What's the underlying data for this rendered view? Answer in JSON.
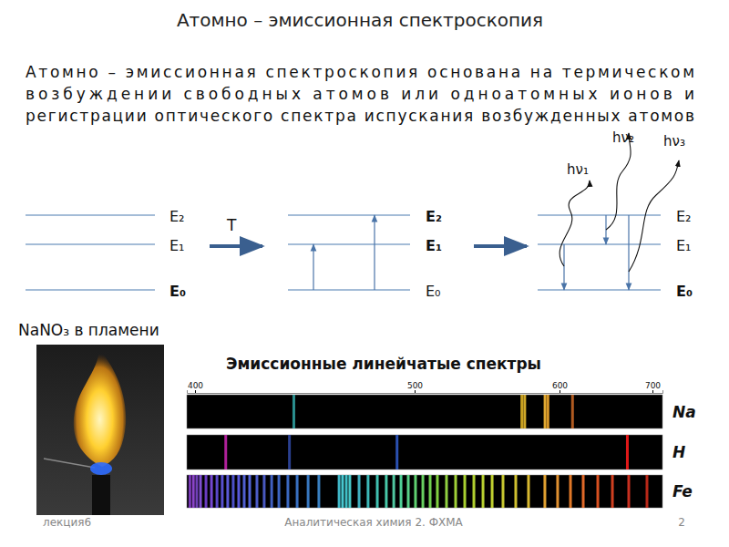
{
  "title": "Атомно – эмиссионная спектроскопия",
  "paragraph_lines": [
    "Атомно – эмиссионная спектроскопия основана на термическом",
    "возбуждении свободных атомов или одноатомных ионов и",
    "регистрации оптического спектра испускания возбужденных атомов"
  ],
  "energy_diagram": {
    "panels": [
      {
        "levels": [
          {
            "label": "E₂",
            "bold": false
          },
          {
            "label": "E₁",
            "bold": false
          },
          {
            "label": "E₀",
            "bold": true
          }
        ]
      },
      {
        "levels": [
          {
            "label": "E₂",
            "bold": true
          },
          {
            "label": "E₁",
            "bold": true
          },
          {
            "label": "E₀",
            "bold": false
          }
        ]
      },
      {
        "levels": [
          {
            "label": "E₂",
            "bold": false
          },
          {
            "label": "E₁",
            "bold": false
          },
          {
            "label": "E₀",
            "bold": true
          }
        ]
      }
    ],
    "heating_label": "T",
    "photons": [
      "hν₁",
      "hν₂",
      "hν₃"
    ]
  },
  "photo_caption": "NaNO₃ в пламени",
  "chart_data": {
    "type": "spectrum",
    "title": "Эмиссионные линейчатые спектры",
    "xlim": [
      396,
      711
    ],
    "xticks": [
      400,
      500,
      600,
      700
    ],
    "series": [
      {
        "name": "Na",
        "values": [
          445,
          574,
          576,
          590,
          592,
          614
        ],
        "colors": [
          "#2a8f8f",
          "#c8a020",
          "#d0a828",
          "#e0a830",
          "#d89828",
          "#b05a20"
        ]
      },
      {
        "name": "H",
        "values": [
          414,
          443,
          492,
          673
        ],
        "colors": [
          "#b0209a",
          "#2a3f8f",
          "#2a50b0",
          "#e01818"
        ]
      },
      {
        "name": "Fe",
        "values": [
          397.5,
          399.2,
          400.8,
          402.5,
          405.0,
          407.5,
          410.0,
          412.4,
          414.9,
          417.4,
          419.9,
          422.4,
          424.9,
          428.2,
          431.5,
          434.9,
          438.2,
          442.3,
          446.5,
          451.5,
          456.4,
          465.6,
          467.2,
          468.9,
          470.5,
          474.7,
          478.8,
          483.0,
          487.1,
          490.5,
          493.8,
          497.1,
          500.6,
          505.7,
          510.7,
          515.7,
          522.0,
          528.3,
          534.6,
          540.9,
          547.2,
          553.5,
          561.0,
          569.8,
          578.6,
          589.9,
          598.7,
          611.8,
          625.5,
          641.2,
          656.9,
          674.5,
          694.1
        ],
        "colors": [
          "#7a3ab8",
          "#8a44c8",
          "#7040b8",
          "#8050d0",
          "#6a3cc0",
          "#7448d0",
          "#5a48c8",
          "#5850d0",
          "#5a5ad8",
          "#4c50c8",
          "#5858d8",
          "#5060d0",
          "#5464d8",
          "#4c5cc8",
          "#4858c0",
          "#4060c0",
          "#3c64c0",
          "#3a68c0",
          "#3870c0",
          "#3878c0",
          "#3a80c0",
          "#40b8c8",
          "#48c8d0",
          "#40c0c8",
          "#48c8c8",
          "#40b0c0",
          "#3cb8b8",
          "#40c0b0",
          "#48c8a8",
          "#50c8a0",
          "#50d098",
          "#58d088",
          "#60d070",
          "#68d060",
          "#70d050",
          "#80d040",
          "#90d040",
          "#a0d038",
          "#a8d030",
          "#b0d030",
          "#b8d030",
          "#c0d030",
          "#c8c830",
          "#d0c030",
          "#d8b830",
          "#e0a030",
          "#e09030",
          "#e07828",
          "#e06828",
          "#d85020",
          "#d04020",
          "#c83020",
          "#b82818"
        ]
      }
    ]
  },
  "footer": {
    "left": "лекция6",
    "center": "Аналитическая химия 2. ФХМА",
    "page": 2
  }
}
